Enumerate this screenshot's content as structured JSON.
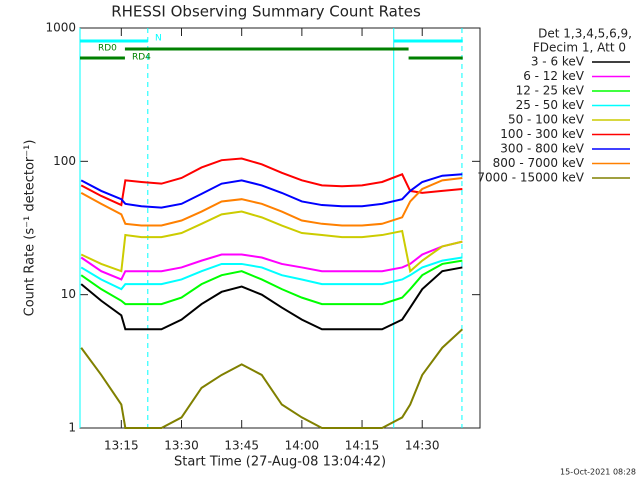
{
  "chart_data": {
    "type": "line",
    "title": "RHESSI Observing Summary Count Rates",
    "xlabel": "Start Time (27-Aug-08 13:04:42)",
    "ylabel": "Count Rate (s⁻¹ detector⁻¹)",
    "footer": "15-Oct-2021 08:28",
    "legend_header": [
      "Det 1,3,4,5,6,9,",
      "FDecim 1, Att 0"
    ],
    "log_y": true,
    "xlim": [
      4.7,
      104.4
    ],
    "ylim": [
      1,
      1000
    ],
    "xticks": [
      {
        "value": 15,
        "label": "13:15"
      },
      {
        "value": 30,
        "label": "13:30"
      },
      {
        "value": 45,
        "label": "13:45"
      },
      {
        "value": 60,
        "label": "14:00"
      },
      {
        "value": 75,
        "label": "14:15"
      },
      {
        "value": 90,
        "label": "14:30"
      }
    ],
    "yticks": [
      1,
      10,
      100,
      1000
    ],
    "x": [
      5,
      10,
      15,
      16,
      20,
      25,
      30,
      35,
      40,
      45,
      50,
      55,
      60,
      65,
      70,
      75,
      80,
      85,
      87,
      90,
      95,
      100
    ],
    "series": [
      {
        "name": "3 - 6 keV",
        "color": "#000000",
        "values": [
          12,
          9,
          7,
          5.5,
          5.5,
          5.5,
          6.5,
          8.5,
          10.5,
          11.5,
          10,
          8,
          6.5,
          5.5,
          5.5,
          5.5,
          5.5,
          6.5,
          8,
          11,
          15,
          16
        ]
      },
      {
        "name": "6 - 12 keV",
        "color": "#ff00ff",
        "values": [
          19,
          15,
          13,
          15,
          15,
          15,
          16,
          18,
          20,
          20,
          19,
          17,
          16,
          15,
          15,
          15,
          15,
          16,
          17,
          20,
          23,
          25
        ]
      },
      {
        "name": "12 - 25 keV",
        "color": "#00ff00",
        "values": [
          14,
          11,
          9,
          8.5,
          8.5,
          8.5,
          9.5,
          12,
          14,
          15,
          13,
          11,
          9.5,
          8.5,
          8.5,
          8.5,
          8.5,
          9.5,
          11,
          14,
          17,
          18
        ]
      },
      {
        "name": "25 - 50 keV",
        "color": "#00ffff",
        "values": [
          16,
          13,
          11,
          12,
          12,
          12,
          13,
          15,
          17,
          17,
          16,
          14,
          13,
          12,
          12,
          12,
          12,
          13,
          14,
          16,
          18,
          19
        ]
      },
      {
        "name": "50 - 100 keV",
        "color": "#cccc00",
        "values": [
          20,
          17,
          15,
          28,
          27,
          27,
          29,
          34,
          40,
          42,
          38,
          33,
          29,
          28,
          27,
          27,
          28,
          30,
          15,
          18,
          23,
          25
        ]
      },
      {
        "name": "100 - 300 keV",
        "color": "#ff0000",
        "values": [
          66,
          55,
          47,
          72,
          70,
          68,
          75,
          90,
          102,
          105,
          95,
          82,
          72,
          66,
          65,
          66,
          70,
          80,
          60,
          58,
          60,
          62
        ]
      },
      {
        "name": "300 - 800 keV",
        "color": "#0000ff",
        "values": [
          72,
          60,
          52,
          48,
          46,
          45,
          48,
          57,
          68,
          72,
          66,
          58,
          50,
          47,
          46,
          46,
          48,
          52,
          60,
          70,
          78,
          80
        ]
      },
      {
        "name": "800 - 7000 keV",
        "color": "#ff8000",
        "values": [
          58,
          48,
          40,
          34,
          33,
          33,
          36,
          42,
          50,
          52,
          48,
          42,
          36,
          34,
          33,
          33,
          34,
          38,
          50,
          62,
          72,
          75
        ]
      },
      {
        "name": "7000 - 15000 keV",
        "color": "#808000",
        "values": [
          4,
          2.5,
          1.5,
          1,
          1,
          1,
          1.2,
          2,
          2.5,
          3,
          2.5,
          1.5,
          1.2,
          1,
          1,
          1,
          1,
          1.2,
          1.5,
          2.5,
          4,
          5.5
        ]
      }
    ],
    "vlines": [
      {
        "x": 4.7,
        "dashed": false
      },
      {
        "x": 21.6,
        "dashed": true
      },
      {
        "x": 82.9,
        "dashed": false
      },
      {
        "x": 99.9,
        "dashed": true
      }
    ],
    "flags": [
      {
        "label": "N",
        "color": "#00ffff",
        "segments": [
          [
            4.7,
            21.6
          ],
          [
            82.9,
            100.1
          ]
        ]
      },
      {
        "label": "RD0",
        "color": "#008000",
        "segments": [
          [
            15.9,
            86.6
          ]
        ]
      },
      {
        "label": "RD4",
        "color": "#008000",
        "segments": [
          [
            4.7,
            15.9
          ],
          [
            86.6,
            100.1
          ]
        ]
      }
    ]
  }
}
